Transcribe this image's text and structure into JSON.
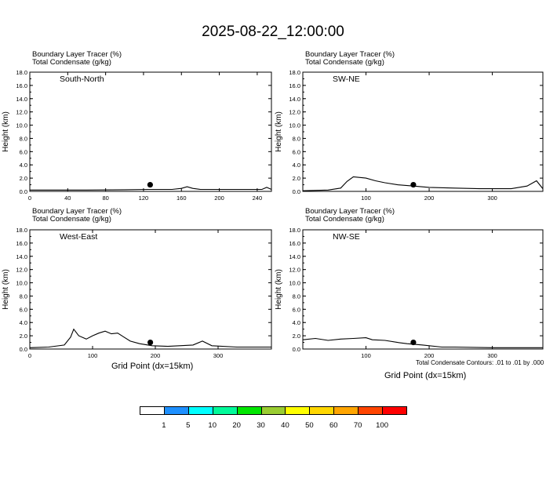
{
  "page_title": "2025-08-22_12:00:00",
  "field1": "Boundary Layer Tracer   (%)",
  "field2": "Total Condensate   (g/kg)",
  "xlabel": "Grid Point (dx=15km)",
  "ylabel": "Height (km)",
  "contour_note": "Total Condensate Contours: .01 to .01 by .000",
  "colorbar": {
    "colors": [
      "#ffffff",
      "#1e90ff",
      "#00ffff",
      "#00fa9a",
      "#00e600",
      "#9acd32",
      "#ffff00",
      "#ffd700",
      "#ffa500",
      "#ff4500",
      "#ff0000"
    ],
    "ticks": [
      "1",
      "5",
      "10",
      "20",
      "30",
      "40",
      "50",
      "60",
      "70",
      "100"
    ]
  },
  "chart_data": [
    {
      "type": "line",
      "name": "South-North",
      "xlim": [
        0,
        255
      ],
      "ylim": [
        0,
        18
      ],
      "xticks": [
        "0",
        "40",
        "80",
        "120",
        "160",
        "200",
        "240"
      ],
      "yticks": [
        "0.0",
        "2.0",
        "4.0",
        "6.0",
        "8.0",
        "10.0",
        "12.0",
        "14.0",
        "16.0",
        "18.0"
      ],
      "terrain": {
        "x": [
          0,
          30,
          60,
          100,
          125,
          150,
          160,
          166,
          172,
          180,
          220,
          245,
          250,
          255
        ],
        "y": [
          0.2,
          0.2,
          0.2,
          0.25,
          0.3,
          0.3,
          0.45,
          0.7,
          0.45,
          0.3,
          0.3,
          0.3,
          0.6,
          0.3
        ]
      },
      "marker": {
        "x": 127,
        "y": 1.0
      }
    },
    {
      "type": "line",
      "name": "SW-NE",
      "xlim": [
        0,
        380
      ],
      "ylim": [
        0,
        18
      ],
      "xticks": [
        "100",
        "200",
        "300"
      ],
      "yticks": [
        "0.0",
        "2.0",
        "4.0",
        "6.0",
        "8.0",
        "10.0",
        "12.0",
        "14.0",
        "16.0",
        "18.0"
      ],
      "terrain": {
        "x": [
          0,
          40,
          60,
          70,
          80,
          100,
          115,
          130,
          150,
          175,
          200,
          240,
          280,
          330,
          355,
          370,
          380
        ],
        "y": [
          0.1,
          0.2,
          0.5,
          1.5,
          2.2,
          2.0,
          1.6,
          1.3,
          1.0,
          0.8,
          0.6,
          0.5,
          0.4,
          0.4,
          0.8,
          1.6,
          0.4
        ]
      },
      "marker": {
        "x": 175,
        "y": 1.0
      }
    },
    {
      "type": "line",
      "name": "West-East",
      "xlim": [
        0,
        385
      ],
      "ylim": [
        0,
        18
      ],
      "xticks": [
        "0",
        "100",
        "200",
        "300"
      ],
      "yticks": [
        "0.0",
        "2.0",
        "4.0",
        "6.0",
        "8.0",
        "10.0",
        "12.0",
        "14.0",
        "16.0",
        "18.0"
      ],
      "terrain": {
        "x": [
          0,
          30,
          55,
          65,
          70,
          78,
          90,
          100,
          110,
          120,
          130,
          140,
          150,
          160,
          175,
          195,
          220,
          260,
          275,
          290,
          330,
          385
        ],
        "y": [
          0.2,
          0.3,
          0.6,
          1.8,
          3.0,
          2.0,
          1.5,
          2.0,
          2.4,
          2.7,
          2.3,
          2.4,
          1.8,
          1.2,
          0.8,
          0.5,
          0.4,
          0.6,
          1.2,
          0.5,
          0.3,
          0.3
        ]
      },
      "marker": {
        "x": 192,
        "y": 1.0
      }
    },
    {
      "type": "line",
      "name": "NW-SE",
      "xlim": [
        0,
        380
      ],
      "ylim": [
        0,
        18
      ],
      "xticks": [
        "100",
        "200",
        "300"
      ],
      "yticks": [
        "0.0",
        "2.0",
        "4.0",
        "6.0",
        "8.0",
        "10.0",
        "12.0",
        "14.0",
        "16.0",
        "18.0"
      ],
      "terrain": {
        "x": [
          0,
          20,
          40,
          60,
          80,
          100,
          110,
          130,
          150,
          165,
          190,
          220,
          240,
          300,
          380
        ],
        "y": [
          1.4,
          1.6,
          1.3,
          1.5,
          1.6,
          1.7,
          1.4,
          1.3,
          1.0,
          0.8,
          0.6,
          0.3,
          0.3,
          0.2,
          0.2
        ]
      },
      "marker": {
        "x": 175,
        "y": 1.0
      }
    }
  ]
}
